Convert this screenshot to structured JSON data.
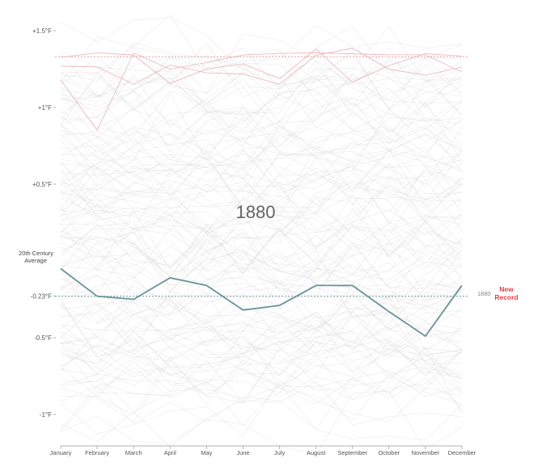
{
  "chart_data": {
    "type": "line",
    "title": "",
    "current_year_label": "1880",
    "x": [
      "January",
      "February",
      "March",
      "April",
      "May",
      "June",
      "July",
      "August",
      "September",
      "October",
      "November",
      "December"
    ],
    "y_ticks": [
      {
        "value": 1.5,
        "label": "+1.5°F"
      },
      {
        "value": 1.0,
        "label": "+1°F"
      },
      {
        "value": 0.5,
        "label": "+0.5°F"
      },
      {
        "value": 0.0,
        "label": ""
      },
      {
        "value": -0.23,
        "label": "-0.23°F"
      },
      {
        "value": -0.5,
        "label": "-0.5°F"
      },
      {
        "value": -1.0,
        "label": "-1°F"
      }
    ],
    "ylim": [
      -1.2,
      1.6
    ],
    "reference_line": {
      "label_line1": "20th Century",
      "label_line2": "Average",
      "value": 0.0
    },
    "record_line_low": {
      "value": -0.23,
      "year_label": "1880",
      "label_line1": "New",
      "label_line2": "Record",
      "color": "#6a9399"
    },
    "record_line_high": {
      "value": 1.33,
      "color": "#e8a0a8"
    },
    "series": [
      {
        "name": "1880",
        "values": [
          -0.05,
          -0.23,
          -0.25,
          -0.11,
          -0.16,
          -0.32,
          -0.29,
          -0.16,
          -0.16,
          -0.33,
          -0.49,
          -0.16
        ],
        "color": "#6a9399"
      }
    ],
    "background_series_count": 130,
    "background_color": "#d8d8d8",
    "highlight_background_color": "#e8b3ba"
  }
}
